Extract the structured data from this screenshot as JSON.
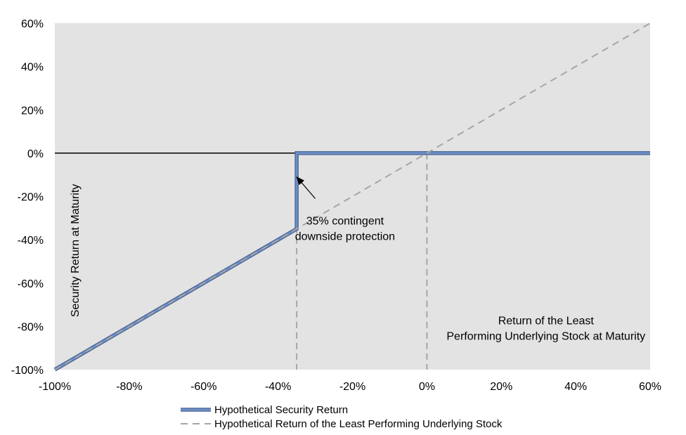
{
  "chart_data": {
    "type": "line",
    "title": "",
    "xlabel": "Return of the Least Performing Underlying Stock at Maturity",
    "xlabel_lines": [
      "Return of the Least",
      "Performing Underlying Stock at Maturity"
    ],
    "ylabel": "Security Return at Maturity",
    "xlim": [
      -100,
      60
    ],
    "ylim": [
      -100,
      60
    ],
    "x_ticks": [
      -100,
      -80,
      -60,
      -40,
      -20,
      0,
      20,
      40,
      60
    ],
    "y_ticks": [
      -100,
      -80,
      -60,
      -40,
      -20,
      0,
      20,
      40,
      60
    ],
    "x_tick_labels": [
      "-100%",
      "-80%",
      "-60%",
      "-40%",
      "-20%",
      "0%",
      "20%",
      "40%",
      "60%"
    ],
    "y_tick_labels": [
      "-100%",
      "-80%",
      "-60%",
      "-40%",
      "-20%",
      "0%",
      "20%",
      "40%",
      "60%"
    ],
    "grid": false,
    "legend_position": "bottom",
    "background_color": "#e3e3e3",
    "series": [
      {
        "name": "Hypothetical Security Return",
        "style": "solid",
        "color": "#6d8fc6",
        "x": [
          -100,
          -35,
          -35,
          60
        ],
        "y": [
          -100,
          -35,
          0,
          0
        ]
      },
      {
        "name": "Hypothetical Return of the Least Performing Underlying Stock",
        "style": "dashed",
        "color": "#a6a6a6",
        "x": [
          -100,
          60
        ],
        "y": [
          -100,
          60
        ]
      }
    ],
    "reference_lines": [
      {
        "axis": "x",
        "value": -35,
        "style": "dashed"
      },
      {
        "axis": "x",
        "value": 0,
        "style": "dashed"
      }
    ],
    "annotation": {
      "lines": [
        "35% contingent",
        "downside protection"
      ],
      "text_x": -22,
      "text_y": -33,
      "arrow_from": [
        -30,
        -21
      ],
      "arrow_to": [
        -35,
        -11
      ]
    }
  }
}
